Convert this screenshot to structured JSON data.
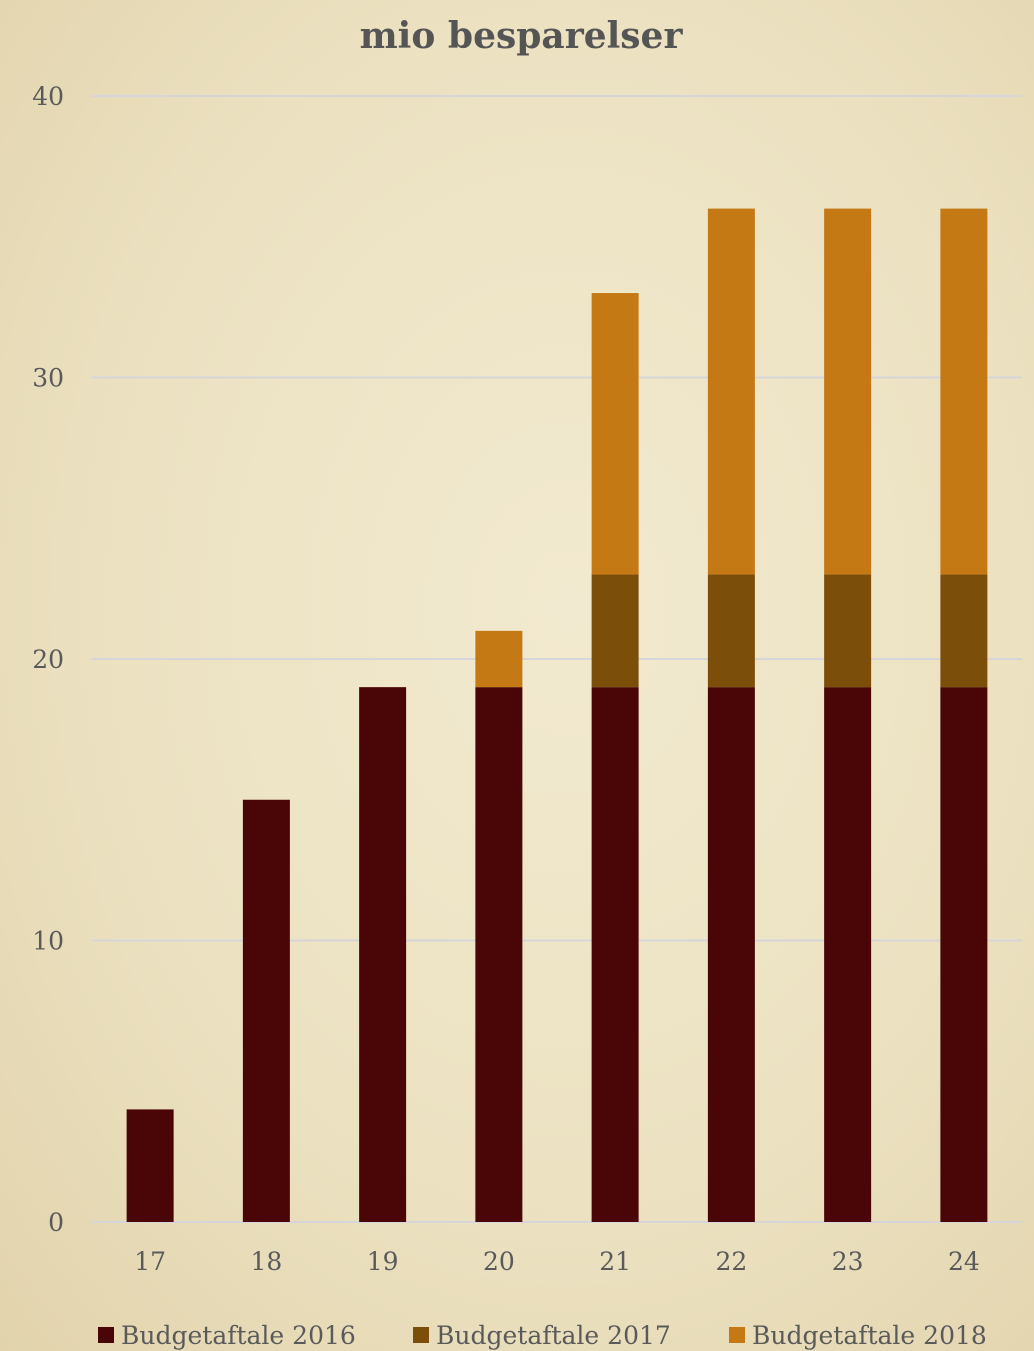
{
  "chart_data": {
    "type": "bar",
    "stacked": true,
    "title": "mio besparelser",
    "xlabel": "",
    "ylabel": "",
    "categories": [
      "17",
      "18",
      "19",
      "20",
      "21",
      "22",
      "23",
      "24"
    ],
    "ylim": [
      0,
      40
    ],
    "yticks": [
      "0",
      "10",
      "20",
      "30",
      "40"
    ],
    "grid": true,
    "legend_position": "bottom",
    "series": [
      {
        "name": "Budgetaftale 2016",
        "color": "#4a0606",
        "values": [
          4,
          15,
          19,
          19,
          19,
          19,
          19,
          19
        ]
      },
      {
        "name": "Budgetaftale 2017",
        "color": "#7b4f0a",
        "values": [
          0,
          0,
          0,
          0,
          4,
          4,
          4,
          4
        ]
      },
      {
        "name": "Budgetaftale 2018",
        "color": "#c57914",
        "values": [
          0,
          0,
          0,
          2,
          10,
          13,
          13,
          13
        ]
      }
    ]
  }
}
